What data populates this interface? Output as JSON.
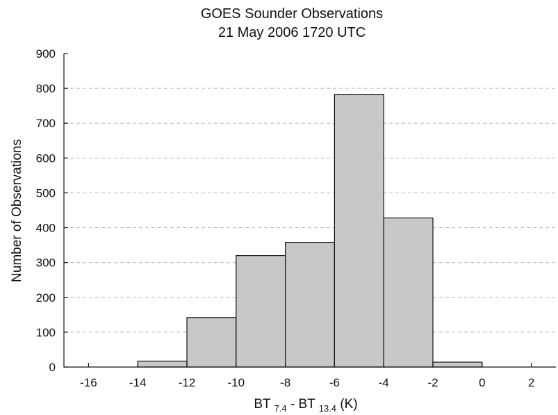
{
  "chart_data": {
    "type": "bar",
    "title": [
      "GOES Sounder Observations",
      "21 May 2006 1720 UTC"
    ],
    "xlabel": {
      "parts": [
        "BT ",
        "7.4",
        " - BT ",
        "13.4",
        " (K)"
      ]
    },
    "ylabel": "Number of Observations",
    "xlim": [
      -17,
      3
    ],
    "ylim": [
      0,
      900
    ],
    "xticks": [
      -16,
      -14,
      -12,
      -10,
      -8,
      -6,
      -4,
      -2,
      0,
      2
    ],
    "xtick_labels": [
      "-16",
      "-14",
      "-12",
      "-10",
      "-8",
      "-6",
      "-4",
      "-2",
      "0",
      "2"
    ],
    "yticks": [
      0,
      100,
      200,
      300,
      400,
      500,
      600,
      700,
      800,
      900
    ],
    "ytick_labels": [
      "0",
      "100",
      "200",
      "300",
      "400",
      "500",
      "600",
      "700",
      "800",
      "900"
    ],
    "grid": "horizontal dashed",
    "bin_edges": [
      -14,
      -12,
      -10,
      -8,
      -6,
      -4,
      -2,
      0
    ],
    "values": [
      17,
      142,
      320,
      358,
      783,
      428,
      14
    ],
    "bar_color": "#c8c8c8",
    "edge_color": "#111111"
  }
}
